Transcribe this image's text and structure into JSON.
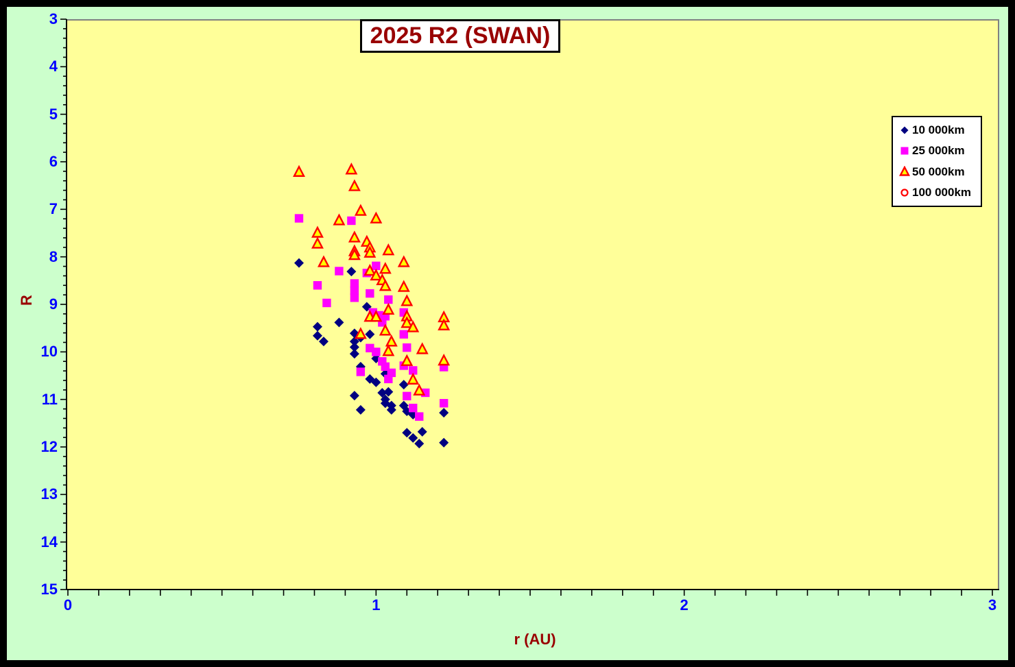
{
  "title": {
    "text": "2025 R2 (SWAN)"
  },
  "colors": {
    "frame": "#000000",
    "background": "#CCFFCC",
    "plot_background": "#FFFF99",
    "tick_label": "#0000FF",
    "axis_line": "#000000",
    "plot_border": "#808080",
    "title_text": "#990000",
    "axis_title_text": "#990000",
    "legend_background": "#FFFFFF"
  },
  "chart_data": {
    "type": "scatter",
    "title": "2025 R2 (SWAN)",
    "xlabel": "r (AU)",
    "ylabel": "R",
    "xlim": [
      0,
      3
    ],
    "ylim": [
      3,
      15
    ],
    "y_axis_inverted": true,
    "x_major_ticks": [
      0,
      1,
      2,
      3
    ],
    "x_minor_step": 0.1,
    "y_major_step": 1,
    "y_minor_step": 0.2,
    "grid": false,
    "legend_position": "right",
    "series": [
      {
        "name": "10 000km",
        "marker": "diamond",
        "fill": "#000080",
        "stroke": "#000080",
        "points": [
          [
            0.75,
            8.13
          ],
          [
            0.92,
            8.31
          ],
          [
            0.97,
            9.05
          ],
          [
            0.88,
            9.38
          ],
          [
            0.81,
            9.47
          ],
          [
            0.81,
            9.66
          ],
          [
            0.83,
            9.78
          ],
          [
            0.93,
            9.61
          ],
          [
            0.95,
            9.7
          ],
          [
            0.98,
            9.63
          ],
          [
            0.93,
            9.78
          ],
          [
            0.93,
            9.9
          ],
          [
            0.93,
            10.04
          ],
          [
            1.0,
            10.14
          ],
          [
            0.95,
            10.31
          ],
          [
            1.03,
            10.46
          ],
          [
            0.98,
            10.57
          ],
          [
            1.0,
            10.64
          ],
          [
            1.09,
            10.69
          ],
          [
            1.02,
            10.86
          ],
          [
            1.04,
            10.84
          ],
          [
            0.93,
            10.92
          ],
          [
            1.03,
            11.0
          ],
          [
            1.03,
            11.08
          ],
          [
            1.05,
            11.13
          ],
          [
            1.05,
            11.22
          ],
          [
            0.95,
            11.22
          ],
          [
            1.09,
            11.13
          ],
          [
            1.1,
            11.25
          ],
          [
            1.12,
            11.32
          ],
          [
            1.22,
            11.28
          ],
          [
            1.1,
            11.7
          ],
          [
            1.15,
            11.68
          ],
          [
            1.12,
            11.81
          ],
          [
            1.14,
            11.93
          ],
          [
            1.22,
            11.91
          ]
        ]
      },
      {
        "name": "25 000km",
        "marker": "square",
        "fill": "#FF00FF",
        "stroke": "#FF00FF",
        "points": [
          [
            0.75,
            7.19
          ],
          [
            0.92,
            7.24
          ],
          [
            0.88,
            8.3
          ],
          [
            1.0,
            8.19
          ],
          [
            0.97,
            8.34
          ],
          [
            0.81,
            8.6
          ],
          [
            0.84,
            8.97
          ],
          [
            0.93,
            8.56
          ],
          [
            0.93,
            8.71
          ],
          [
            0.93,
            8.86
          ],
          [
            0.98,
            8.77
          ],
          [
            1.04,
            8.9
          ],
          [
            0.99,
            9.17
          ],
          [
            1.01,
            9.23
          ],
          [
            1.03,
            9.25
          ],
          [
            1.02,
            9.38
          ],
          [
            1.09,
            9.17
          ],
          [
            1.09,
            9.63
          ],
          [
            0.98,
            9.92
          ],
          [
            1.1,
            9.91
          ],
          [
            1.0,
            10.0
          ],
          [
            1.02,
            10.2
          ],
          [
            1.03,
            10.31
          ],
          [
            1.09,
            10.29
          ],
          [
            1.12,
            10.39
          ],
          [
            1.22,
            10.32
          ],
          [
            0.95,
            10.42
          ],
          [
            1.05,
            10.44
          ],
          [
            1.04,
            10.57
          ],
          [
            1.16,
            10.86
          ],
          [
            1.1,
            10.93
          ],
          [
            1.12,
            11.18
          ],
          [
            1.14,
            11.36
          ],
          [
            1.22,
            11.08
          ]
        ]
      },
      {
        "name": "50 000km",
        "marker": "triangle",
        "fill": "#FFFF00",
        "stroke": "#FF0000",
        "points": [
          [
            0.75,
            6.22
          ],
          [
            0.92,
            6.17
          ],
          [
            0.93,
            6.52
          ],
          [
            0.95,
            7.04
          ],
          [
            0.88,
            7.24
          ],
          [
            1.0,
            7.2
          ],
          [
            0.81,
            7.5
          ],
          [
            0.81,
            7.73
          ],
          [
            0.93,
            7.6
          ],
          [
            0.97,
            7.69
          ],
          [
            0.93,
            7.89
          ],
          [
            0.93,
            7.97
          ],
          [
            0.98,
            7.81
          ],
          [
            0.98,
            7.92
          ],
          [
            1.04,
            7.87
          ],
          [
            0.83,
            8.12
          ],
          [
            1.09,
            8.12
          ],
          [
            0.98,
            8.3
          ],
          [
            1.0,
            8.4
          ],
          [
            1.03,
            8.26
          ],
          [
            1.02,
            8.5
          ],
          [
            1.03,
            8.62
          ],
          [
            1.09,
            8.64
          ],
          [
            1.1,
            8.94
          ],
          [
            1.04,
            9.12
          ],
          [
            0.98,
            9.27
          ],
          [
            1.0,
            9.27
          ],
          [
            1.1,
            9.26
          ],
          [
            1.1,
            9.4
          ],
          [
            1.22,
            9.28
          ],
          [
            1.22,
            9.45
          ],
          [
            1.12,
            9.49
          ],
          [
            0.95,
            9.63
          ],
          [
            1.03,
            9.56
          ],
          [
            1.05,
            9.79
          ],
          [
            1.15,
            9.95
          ],
          [
            1.04,
            9.99
          ],
          [
            1.22,
            10.19
          ],
          [
            1.1,
            10.2
          ],
          [
            1.12,
            10.59
          ],
          [
            1.14,
            10.82
          ]
        ]
      },
      {
        "name": "100 000km",
        "marker": "circle",
        "fill": "#FFFFFF",
        "stroke": "#FF0000",
        "points": []
      }
    ]
  }
}
